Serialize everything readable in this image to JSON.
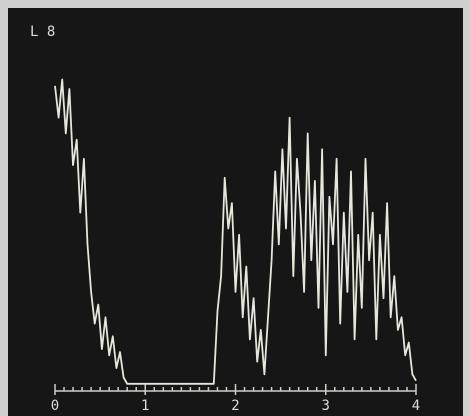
{
  "chart_data": {
    "type": "line",
    "title": "L 8",
    "x": [
      0,
      0.04,
      0.08,
      0.12,
      0.16,
      0.2,
      0.24,
      0.28,
      0.32,
      0.36,
      0.4,
      0.44,
      0.48,
      0.52,
      0.56,
      0.6,
      0.64,
      0.68,
      0.72,
      0.76,
      0.8,
      0.84,
      1.2,
      1.72,
      1.76,
      1.8,
      1.84,
      1.88,
      1.92,
      1.96,
      2,
      2.04,
      2.08,
      2.12,
      2.16,
      2.2,
      2.24,
      2.28,
      2.32,
      2.36,
      2.4,
      2.44,
      2.48,
      2.52,
      2.56,
      2.6,
      2.64,
      2.68,
      2.72,
      2.76,
      2.8,
      2.84,
      2.88,
      2.92,
      2.96,
      3,
      3.04,
      3.08,
      3.12,
      3.16,
      3.2,
      3.24,
      3.28,
      3.32,
      3.36,
      3.4,
      3.44,
      3.48,
      3.52,
      3.56,
      3.6,
      3.64,
      3.68,
      3.72,
      3.76,
      3.8,
      3.84,
      3.88,
      3.92,
      3.96,
      4
    ],
    "values": [
      95,
      85,
      97,
      80,
      94,
      70,
      78,
      55,
      72,
      45,
      30,
      20,
      26,
      12,
      22,
      10,
      16,
      6,
      11,
      3,
      1,
      1,
      1,
      1,
      1,
      24,
      35,
      66,
      50,
      58,
      30,
      48,
      22,
      38,
      15,
      28,
      8,
      18,
      4,
      22,
      40,
      68,
      45,
      75,
      50,
      85,
      35,
      72,
      55,
      30,
      80,
      40,
      65,
      25,
      75,
      10,
      60,
      45,
      72,
      20,
      55,
      30,
      68,
      15,
      48,
      25,
      72,
      40,
      55,
      15,
      48,
      28,
      58,
      22,
      35,
      18,
      22,
      10,
      14,
      4,
      2
    ],
    "color": "#e6e6dc",
    "xlim": [
      0,
      4
    ],
    "xticks": [
      0,
      1,
      2,
      3,
      4
    ],
    "ylim": [
      0,
      100
    ]
  }
}
